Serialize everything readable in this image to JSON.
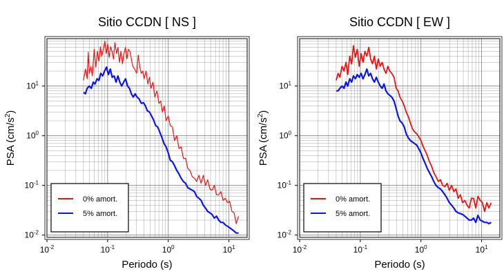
{
  "colors": {
    "series_0": "#ee1111",
    "series_5": "#0a14f0",
    "grid": "#555555",
    "frame": "#000000"
  },
  "chart_data": [
    {
      "type": "line",
      "title": "Sitio CCDN [ NS ]",
      "xlabel": "Periodo (s)",
      "ylabel_main": "PSA (cm/s",
      "ylabel_sup": "2",
      "ylabel_close": ")",
      "xscale": "log",
      "yscale": "log",
      "xlim": [
        0.01,
        20
      ],
      "ylim": [
        0.009,
        90
      ],
      "xticks": [
        {
          "v": 0.01,
          "b": "10",
          "e": "-2"
        },
        {
          "v": 0.1,
          "b": "10",
          "e": "-1"
        },
        {
          "v": 1,
          "b": "10",
          "e": "0"
        },
        {
          "v": 10,
          "b": "10",
          "e": "1"
        }
      ],
      "yticks": [
        {
          "v": 0.01,
          "b": "10",
          "e": "-2"
        },
        {
          "v": 0.1,
          "b": "10",
          "e": "-1"
        },
        {
          "v": 1,
          "b": "10",
          "e": "0"
        },
        {
          "v": 10,
          "b": "10",
          "e": "1"
        }
      ],
      "grid": true,
      "legend_position": "bottom-left",
      "series": [
        {
          "name": "0% amort.",
          "color": "#ee1111",
          "width": 1.2,
          "x": [
            0.04,
            0.043,
            0.046,
            0.048,
            0.05,
            0.053,
            0.056,
            0.06,
            0.064,
            0.068,
            0.072,
            0.076,
            0.08,
            0.085,
            0.09,
            0.095,
            0.1,
            0.106,
            0.112,
            0.118,
            0.125,
            0.132,
            0.14,
            0.148,
            0.157,
            0.166,
            0.176,
            0.186,
            0.197,
            0.208,
            0.22,
            0.233,
            0.246,
            0.26,
            0.28,
            0.3,
            0.32,
            0.34,
            0.36,
            0.38,
            0.4,
            0.43,
            0.46,
            0.49,
            0.52,
            0.56,
            0.6,
            0.65,
            0.7,
            0.75,
            0.8,
            0.86,
            0.92,
            1.0,
            1.08,
            1.17,
            1.27,
            1.38,
            1.5,
            1.63,
            1.77,
            1.93,
            2.1,
            2.28,
            2.48,
            2.7,
            2.94,
            3.2,
            3.48,
            3.78,
            4.11,
            4.47,
            4.86,
            5.28,
            5.74,
            6.24,
            6.78,
            7.37,
            8.01,
            8.71,
            9.47,
            10.3,
            11.2,
            12.2,
            13.2,
            14.4
          ],
          "y": [
            13,
            22,
            14,
            48,
            18,
            25,
            16,
            55,
            24,
            50,
            32,
            62,
            40,
            55,
            80,
            45,
            70,
            38,
            62,
            50,
            35,
            75,
            45,
            60,
            30,
            50,
            28,
            45,
            60,
            35,
            55,
            50,
            35,
            25,
            22,
            18,
            42,
            24,
            18,
            20,
            14,
            20,
            11,
            15,
            9,
            12,
            6,
            8,
            4.5,
            5,
            3,
            4,
            2,
            2.5,
            1.6,
            1.5,
            0.8,
            1.0,
            0.55,
            0.6,
            0.35,
            0.35,
            0.22,
            0.2,
            0.15,
            0.14,
            0.12,
            0.16,
            0.11,
            0.16,
            0.1,
            0.13,
            0.085,
            0.08,
            0.1,
            0.065,
            0.065,
            0.075,
            0.05,
            0.055,
            0.045,
            0.048,
            0.03,
            0.028,
            0.017,
            0.024
          ]
        },
        {
          "name": "5% amort.",
          "color": "#0a14f0",
          "width": 2.2,
          "x": [
            0.04,
            0.043,
            0.046,
            0.05,
            0.054,
            0.058,
            0.062,
            0.067,
            0.072,
            0.077,
            0.083,
            0.089,
            0.096,
            0.103,
            0.111,
            0.119,
            0.128,
            0.138,
            0.148,
            0.159,
            0.171,
            0.184,
            0.198,
            0.213,
            0.229,
            0.246,
            0.265,
            0.285,
            0.306,
            0.33,
            0.36,
            0.39,
            0.42,
            0.45,
            0.49,
            0.53,
            0.57,
            0.62,
            0.67,
            0.72,
            0.78,
            0.85,
            0.92,
            1.0,
            1.08,
            1.17,
            1.27,
            1.38,
            1.5,
            1.63,
            1.77,
            1.93,
            2.1,
            2.28,
            2.48,
            2.7,
            2.94,
            3.2,
            3.48,
            3.78,
            4.11,
            4.47,
            4.86,
            5.28,
            5.74,
            6.24,
            6.78,
            7.37,
            8.01,
            8.71,
            9.47,
            10.3,
            11.2,
            12.2,
            13.2,
            14.4
          ],
          "y": [
            7.5,
            7,
            9,
            10,
            9,
            12,
            11,
            14,
            13,
            18,
            16,
            20,
            24,
            17,
            22,
            15,
            16,
            12,
            16,
            12,
            10,
            12,
            14,
            10,
            9,
            7,
            6,
            7,
            6,
            5.5,
            4.5,
            4.6,
            4.0,
            3.2,
            3.0,
            2.5,
            2.1,
            1.6,
            1.5,
            1.2,
            0.95,
            0.7,
            0.6,
            0.45,
            0.32,
            0.3,
            0.25,
            0.2,
            0.17,
            0.14,
            0.12,
            0.11,
            0.09,
            0.085,
            0.08,
            0.075,
            0.06,
            0.055,
            0.05,
            0.04,
            0.035,
            0.03,
            0.028,
            0.026,
            0.022,
            0.024,
            0.02,
            0.018,
            0.018,
            0.016,
            0.015,
            0.014,
            0.013,
            0.012,
            0.011,
            0.011
          ]
        }
      ]
    },
    {
      "type": "line",
      "title": "Sitio CCDN [ EW ]",
      "xlabel": "Periodo (s)",
      "ylabel_main": "PSA (cm/s",
      "ylabel_sup": "2",
      "ylabel_close": ")",
      "xscale": "log",
      "yscale": "log",
      "xlim": [
        0.01,
        20
      ],
      "ylim": [
        0.009,
        90
      ],
      "xticks": [
        {
          "v": 0.01,
          "b": "10",
          "e": "-2"
        },
        {
          "v": 0.1,
          "b": "10",
          "e": "-1"
        },
        {
          "v": 1,
          "b": "10",
          "e": "0"
        },
        {
          "v": 10,
          "b": "10",
          "e": "1"
        }
      ],
      "yticks": [
        {
          "v": 0.01,
          "b": "10",
          "e": "-2"
        },
        {
          "v": 0.1,
          "b": "10",
          "e": "-1"
        },
        {
          "v": 1,
          "b": "10",
          "e": "0"
        },
        {
          "v": 10,
          "b": "10",
          "e": "1"
        }
      ],
      "grid": true,
      "legend_position": "bottom-left",
      "series": [
        {
          "name": "0% amort.",
          "color": "#ee1111",
          "width": 1.8,
          "x": [
            0.04,
            0.043,
            0.046,
            0.05,
            0.054,
            0.058,
            0.062,
            0.067,
            0.072,
            0.077,
            0.083,
            0.089,
            0.096,
            0.103,
            0.111,
            0.119,
            0.128,
            0.138,
            0.148,
            0.159,
            0.171,
            0.184,
            0.198,
            0.213,
            0.229,
            0.246,
            0.265,
            0.285,
            0.306,
            0.33,
            0.36,
            0.39,
            0.42,
            0.45,
            0.49,
            0.53,
            0.57,
            0.62,
            0.67,
            0.72,
            0.78,
            0.85,
            0.92,
            1.0,
            1.08,
            1.17,
            1.27,
            1.38,
            1.5,
            1.63,
            1.77,
            1.93,
            2.1,
            2.28,
            2.48,
            2.7,
            2.94,
            3.2,
            3.48,
            3.78,
            4.11,
            4.47,
            4.86,
            5.28,
            5.74,
            6.24,
            6.78,
            7.37,
            8.01,
            8.71,
            9.47,
            10.3,
            11.2,
            12.2,
            13.2,
            14.4
          ],
          "y": [
            13,
            18,
            15,
            25,
            20,
            30,
            17,
            40,
            28,
            65,
            38,
            55,
            25,
            45,
            30,
            50,
            40,
            60,
            35,
            28,
            40,
            22,
            35,
            25,
            30,
            22,
            18,
            25,
            20,
            18,
            15,
            9,
            8,
            6,
            5,
            4,
            3,
            2.4,
            1.8,
            1.4,
            1.2,
            1.1,
            0.95,
            0.8,
            0.62,
            0.5,
            0.4,
            0.3,
            0.24,
            0.18,
            0.15,
            0.12,
            0.13,
            0.1,
            0.095,
            0.11,
            0.08,
            0.1,
            0.075,
            0.085,
            0.055,
            0.065,
            0.045,
            0.05,
            0.04,
            0.035,
            0.055,
            0.055,
            0.035,
            0.06,
            0.05,
            0.045,
            0.03,
            0.045,
            0.035,
            0.045
          ]
        },
        {
          "name": "5% amort.",
          "color": "#0a14f0",
          "width": 2.2,
          "x": [
            0.04,
            0.043,
            0.046,
            0.05,
            0.054,
            0.058,
            0.062,
            0.067,
            0.072,
            0.077,
            0.083,
            0.089,
            0.096,
            0.103,
            0.111,
            0.119,
            0.128,
            0.138,
            0.148,
            0.159,
            0.171,
            0.184,
            0.198,
            0.213,
            0.229,
            0.246,
            0.265,
            0.285,
            0.306,
            0.33,
            0.36,
            0.39,
            0.42,
            0.45,
            0.49,
            0.53,
            0.57,
            0.62,
            0.67,
            0.72,
            0.78,
            0.85,
            0.92,
            1.0,
            1.08,
            1.17,
            1.27,
            1.38,
            1.5,
            1.63,
            1.77,
            1.93,
            2.1,
            2.28,
            2.48,
            2.7,
            2.94,
            3.2,
            3.48,
            3.78,
            4.11,
            4.47,
            4.86,
            5.28,
            5.74,
            6.24,
            6.78,
            7.37,
            8.01,
            8.71,
            9.47,
            10.3,
            11.2,
            12.2,
            13.2,
            14.4
          ],
          "y": [
            8,
            8,
            9,
            10,
            9,
            12,
            10,
            14,
            12,
            16,
            14,
            17,
            15,
            18,
            14,
            17,
            22,
            16,
            18,
            14,
            12,
            15,
            12,
            10,
            9,
            11,
            8,
            7,
            6.5,
            6,
            5,
            3.5,
            2.5,
            2,
            1.8,
            1.5,
            1.1,
            0.9,
            0.8,
            0.75,
            0.7,
            0.65,
            0.55,
            0.45,
            0.35,
            0.28,
            0.22,
            0.18,
            0.15,
            0.12,
            0.1,
            0.09,
            0.085,
            0.075,
            0.065,
            0.055,
            0.045,
            0.04,
            0.035,
            0.03,
            0.028,
            0.027,
            0.026,
            0.024,
            0.022,
            0.02,
            0.02,
            0.022,
            0.018,
            0.025,
            0.02,
            0.019,
            0.018,
            0.018,
            0.017,
            0.018
          ]
        }
      ]
    }
  ]
}
